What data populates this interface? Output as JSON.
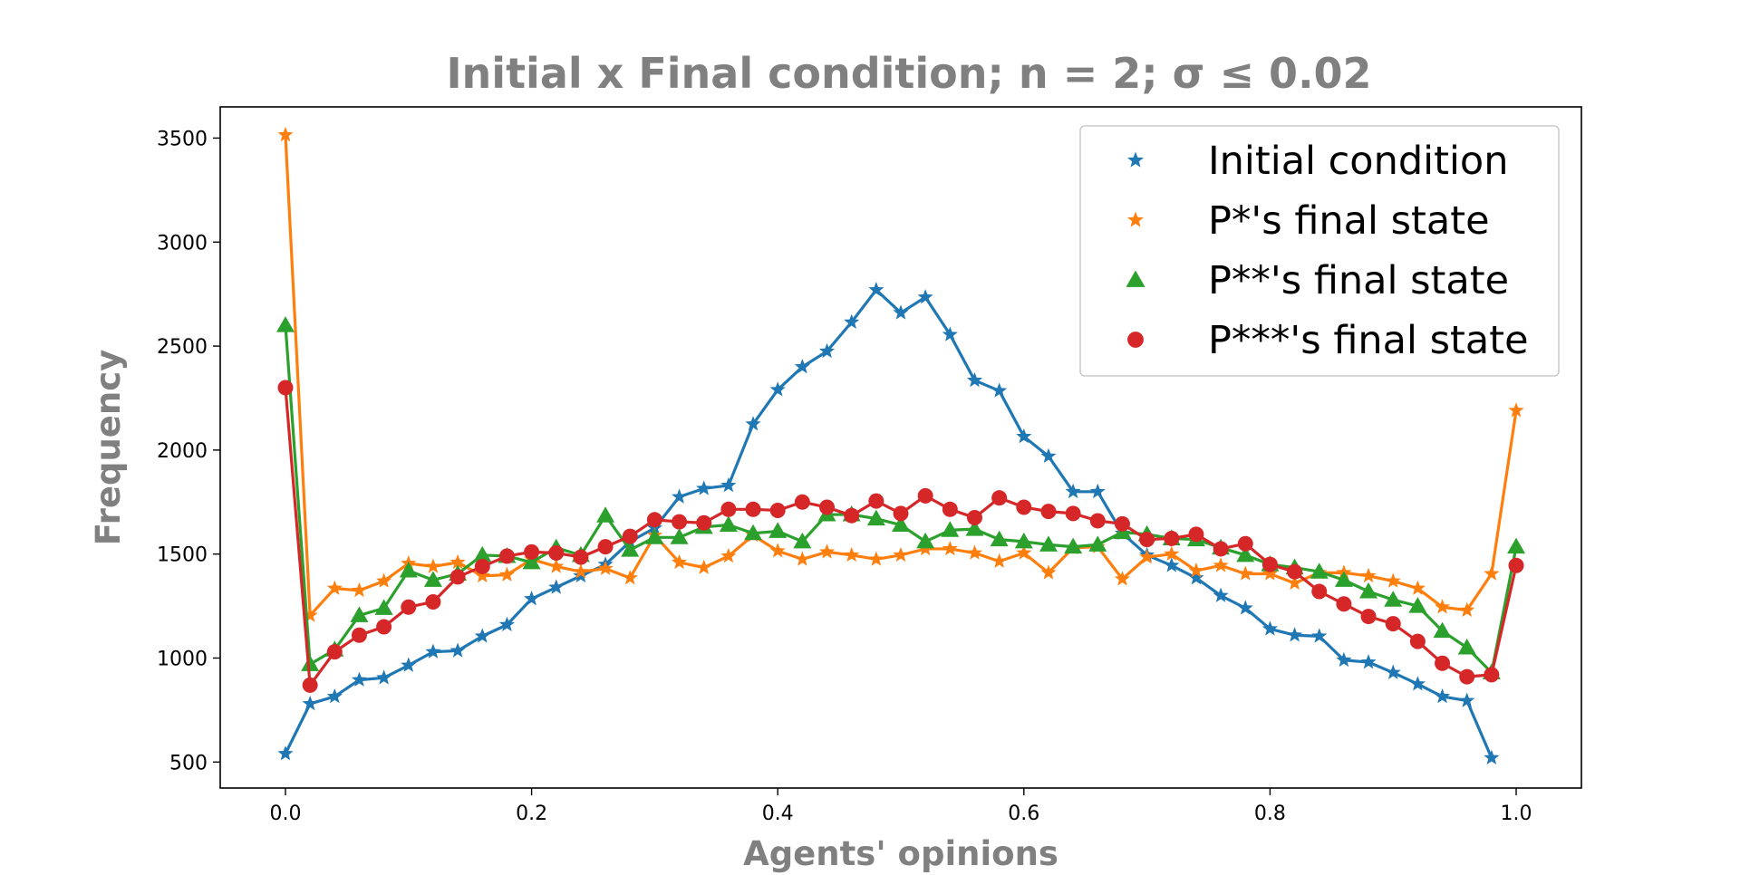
{
  "chart_data": {
    "type": "line",
    "title": "Initial x Final condition; n = 2; σ ≤ 0.02",
    "xlabel": "Agents' opinions",
    "ylabel": "Frequency",
    "xlim": [
      -0.053,
      1.053
    ],
    "ylim": [
      375,
      3650
    ],
    "xticks": [
      0.0,
      0.2,
      0.4,
      0.6,
      0.8,
      1.0
    ],
    "xtick_labels": [
      "0.0",
      "0.2",
      "0.4",
      "0.6",
      "0.8",
      "1.0"
    ],
    "yticks": [
      500,
      1000,
      1500,
      2000,
      2500,
      3000,
      3500
    ],
    "ytick_labels": [
      "500",
      "1000",
      "1500",
      "2000",
      "2500",
      "3000",
      "3500"
    ],
    "grid": false,
    "legend_position": "top-right",
    "x": [
      0.0,
      0.02,
      0.04,
      0.06,
      0.08,
      0.1,
      0.12,
      0.14,
      0.16,
      0.18,
      0.2,
      0.22,
      0.24,
      0.26,
      0.28,
      0.3,
      0.32,
      0.34,
      0.36,
      0.38,
      0.4,
      0.42,
      0.44,
      0.46,
      0.48,
      0.5,
      0.52,
      0.54,
      0.56,
      0.58,
      0.6,
      0.62,
      0.64,
      0.66,
      0.68,
      0.7,
      0.72,
      0.74,
      0.76,
      0.78,
      0.8,
      0.82,
      0.84,
      0.86,
      0.88,
      0.9,
      0.92,
      0.94,
      0.96,
      0.98,
      1.0
    ],
    "series": [
      {
        "name": "Initial condition",
        "color": "#1f77b4",
        "marker": "star",
        "values": [
          540,
          780,
          815,
          895,
          905,
          965,
          1030,
          1035,
          1105,
          1160,
          1285,
          1340,
          1395,
          1450,
          1560,
          1625,
          1775,
          1815,
          1830,
          2125,
          2290,
          2400,
          2475,
          2615,
          2770,
          2660,
          2735,
          2555,
          2335,
          2285,
          2065,
          1970,
          1800,
          1800,
          1600,
          1495,
          1445,
          1385,
          1300,
          1240,
          1140,
          1110,
          1105,
          990,
          980,
          930,
          875,
          815,
          795,
          520,
          null
        ]
      },
      {
        "name": "P*'s final state",
        "color": "#ff7f0e",
        "marker": "star",
        "values": [
          3515,
          1205,
          1335,
          1325,
          1370,
          1455,
          1440,
          1460,
          1395,
          1400,
          1475,
          1440,
          1415,
          1430,
          1385,
          1590,
          1460,
          1435,
          1490,
          1590,
          1515,
          1475,
          1510,
          1495,
          1475,
          1495,
          1525,
          1525,
          1505,
          1465,
          1505,
          1410,
          1530,
          1535,
          1380,
          1485,
          1500,
          1420,
          1445,
          1405,
          1405,
          1360,
          1410,
          1410,
          1395,
          1370,
          1335,
          1245,
          1230,
          1405,
          2190
        ]
      },
      {
        "name": "P**'s final state",
        "color": "#2ca02c",
        "marker": "triangle",
        "values": [
          2600,
          970,
          1040,
          1205,
          1240,
          1420,
          1375,
          1405,
          1495,
          1490,
          1460,
          1530,
          1495,
          1685,
          1520,
          1580,
          1580,
          1630,
          1640,
          1600,
          1610,
          1560,
          1690,
          1690,
          1670,
          1640,
          1560,
          1615,
          1620,
          1570,
          1560,
          1545,
          1535,
          1545,
          1605,
          1595,
          1575,
          1570,
          1530,
          1495,
          1450,
          1435,
          1415,
          1375,
          1320,
          1280,
          1250,
          1130,
          1050,
          930,
          1535
        ]
      },
      {
        "name": "P***'s final state",
        "color": "#d62728",
        "marker": "circle",
        "values": [
          2300,
          870,
          1030,
          1110,
          1150,
          1245,
          1270,
          1390,
          1440,
          1490,
          1510,
          1505,
          1485,
          1535,
          1585,
          1665,
          1655,
          1650,
          1715,
          1715,
          1710,
          1750,
          1725,
          1685,
          1755,
          1695,
          1780,
          1715,
          1675,
          1770,
          1725,
          1705,
          1695,
          1660,
          1645,
          1570,
          1575,
          1595,
          1525,
          1550,
          1450,
          1415,
          1320,
          1260,
          1200,
          1165,
          1080,
          975,
          910,
          920,
          1445
        ]
      }
    ]
  }
}
